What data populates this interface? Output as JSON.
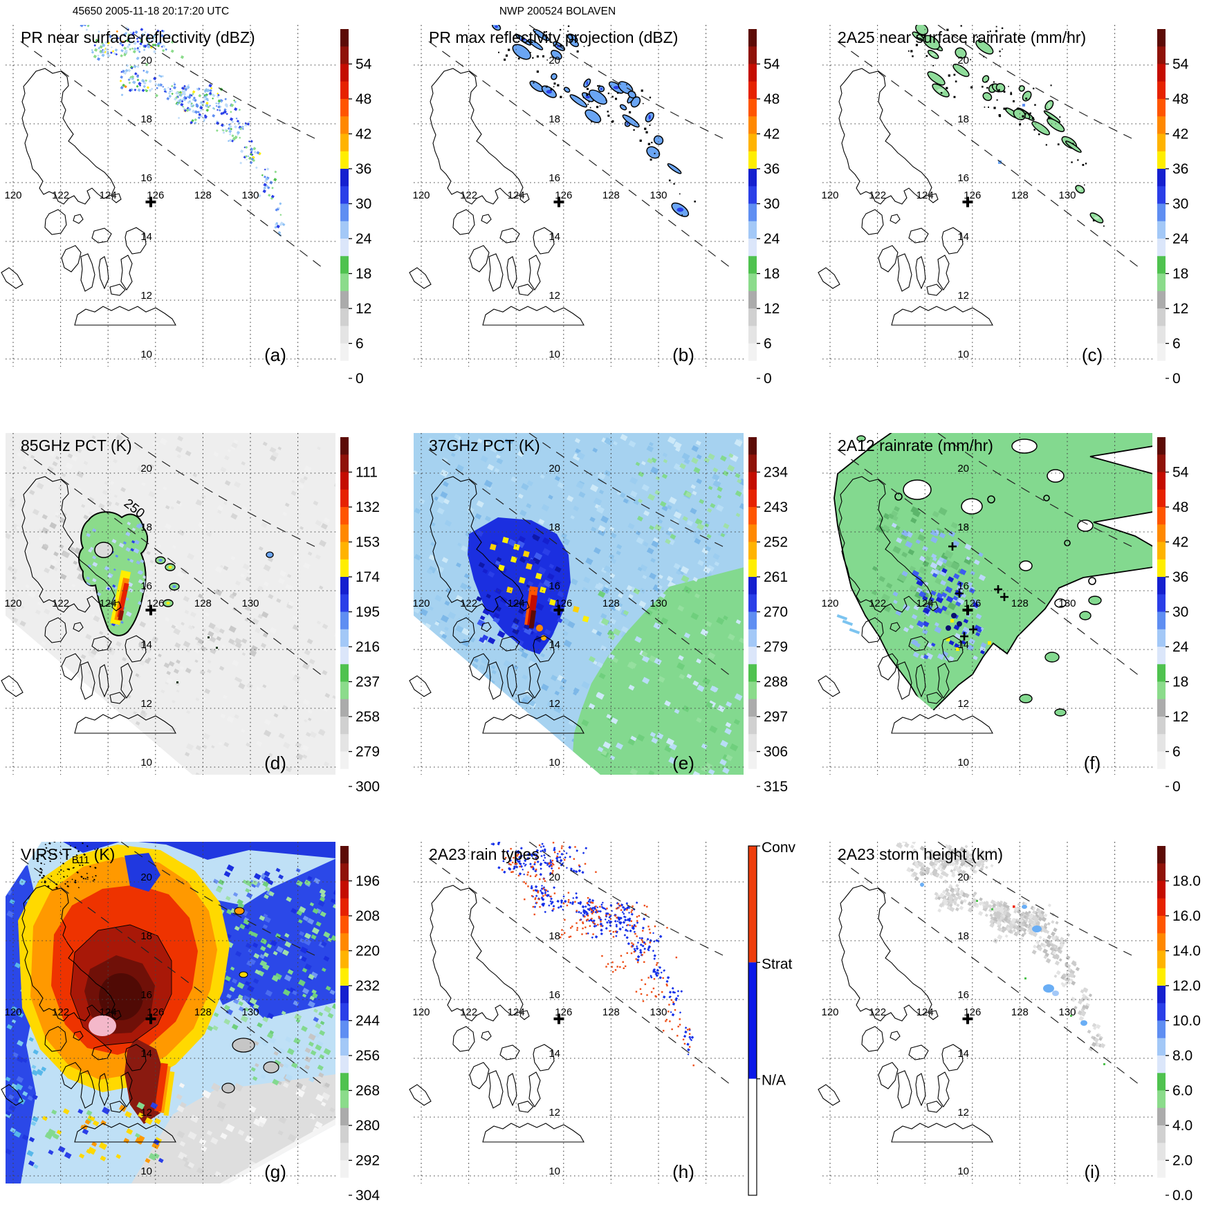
{
  "header": {
    "left": "45650 2005-11-18 20:17:20 UTC",
    "center": "NWP 200524 BOLAVEN"
  },
  "geo": {
    "lon_labels": [
      "120",
      "122",
      "124",
      "126",
      "128",
      "130"
    ],
    "lat_labels": [
      "20",
      "18",
      "16",
      "14",
      "12",
      "10"
    ]
  },
  "colors": {
    "colorbar_bottom_to_top": [
      "#ffffff",
      "#f2f2f2",
      "#e4e4e4",
      "#d0d0d0",
      "#ababab",
      "#8bdb8b",
      "#4fc24f",
      "#dbe6fa",
      "#a3c8f7",
      "#5f8ef2",
      "#2a3fe8",
      "#1520cf",
      "#ffee00",
      "#ffb300",
      "#ff8800",
      "#ff5500",
      "#e62200",
      "#c40c00",
      "#8f1208",
      "#5c0b06"
    ],
    "conv": "#ee3d0c",
    "strat": "#0a18e8",
    "na": "#ffffff",
    "land_outline": "#000000"
  },
  "chart_data": {
    "type": "heatmap",
    "layout": "3x3 satellite overpass map panels",
    "storm": "BOLAVEN",
    "lon_range": [
      120,
      130
    ],
    "lat_range": [
      10,
      20
    ],
    "grid": "dotted graticule every 2 degrees",
    "panels": [
      {
        "letter": "(a)",
        "title": "PR near surface reflectivity (dBZ)",
        "units": "dBZ",
        "style": "a",
        "cb": "gradient",
        "ticks": [
          "54",
          "48",
          "42",
          "36",
          "30",
          "24",
          "18",
          "12",
          "6",
          "0"
        ]
      },
      {
        "letter": "(b)",
        "title": "PR max reflectivity projection (dBZ)",
        "units": "dBZ",
        "style": "b",
        "cb": "gradient",
        "ticks": [
          "54",
          "48",
          "42",
          "36",
          "30",
          "24",
          "18",
          "12",
          "6",
          "0"
        ]
      },
      {
        "letter": "(c)",
        "title": "2A25 near surface rainrate (mm/hr)",
        "units": "mm/hr",
        "style": "c",
        "cb": "gradient",
        "ticks": [
          "54",
          "48",
          "42",
          "36",
          "30",
          "24",
          "18",
          "12",
          "6",
          "0"
        ]
      },
      {
        "letter": "(d)",
        "title": "85GHz PCT (K)",
        "units": "K",
        "style": "d",
        "cb": "gradient",
        "ticks": [
          "111",
          "132",
          "153",
          "174",
          "195",
          "216",
          "237",
          "258",
          "279",
          "300"
        ],
        "contour_label": "250"
      },
      {
        "letter": "(e)",
        "title": "37GHz PCT (K)",
        "units": "K",
        "style": "e",
        "cb": "gradient",
        "ticks": [
          "234",
          "243",
          "252",
          "261",
          "270",
          "279",
          "288",
          "297",
          "306",
          "315"
        ]
      },
      {
        "letter": "(f)",
        "title": "2A12 rainrate (mm/hr)",
        "units": "mm/hr",
        "style": "f",
        "cb": "gradient",
        "ticks": [
          "54",
          "48",
          "42",
          "36",
          "30",
          "24",
          "18",
          "12",
          "6",
          "0"
        ]
      },
      {
        "letter": "(g)",
        "title": "VIRS TB11 (K)",
        "title_parts": {
          "pre": "VIRS T",
          "sub": "B11",
          "post": " (K)"
        },
        "units": "K",
        "style": "g",
        "cb": "gradient",
        "ticks": [
          "196",
          "208",
          "220",
          "232",
          "244",
          "256",
          "268",
          "280",
          "292",
          "304"
        ]
      },
      {
        "letter": "(h)",
        "title": "2A23 rain types",
        "style": "h",
        "cb": "categories",
        "categories": [
          "Conv",
          "Strat",
          "N/A"
        ]
      },
      {
        "letter": "(i)",
        "title": "2A23 storm height (km)",
        "units": "km",
        "style": "i",
        "cb": "gradient",
        "ticks": [
          "18.0",
          "16.0",
          "14.0",
          "12.0",
          "10.0",
          "8.0",
          "6.0",
          "4.0",
          "2.0",
          "0.0"
        ]
      }
    ]
  }
}
